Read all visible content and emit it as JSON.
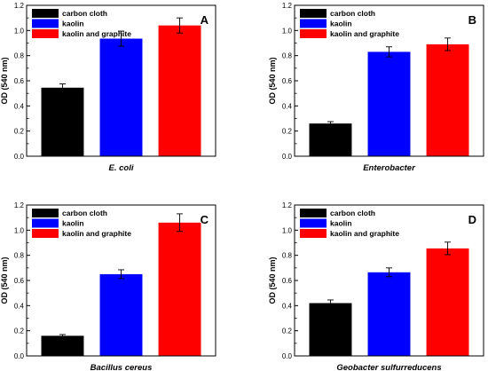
{
  "colors": {
    "carbon_cloth": "#000000",
    "kaolin": "#0000ff",
    "kaolin_graphite": "#ff0000",
    "frame": "#000000"
  },
  "chart_data": [
    {
      "type": "bar",
      "panel": "A",
      "categories": [
        "carbon cloth",
        "kaolin",
        "kaolin and graphite"
      ],
      "values": [
        0.545,
        0.935,
        1.04
      ],
      "errors": [
        0.03,
        0.06,
        0.06
      ],
      "xlabel": "E. coli",
      "ylabel": "OD (540 nm)",
      "ylim": [
        0,
        1.2
      ],
      "yticks": [
        "0.0",
        "0.2",
        "0.4",
        "0.6",
        "0.8",
        "1.0",
        "1.2"
      ],
      "legend": {
        "position": "top-left",
        "entries": [
          "carbon cloth",
          "kaolin",
          "kaolin and graphite"
        ]
      },
      "grid": false
    },
    {
      "type": "bar",
      "panel": "B",
      "categories": [
        "carbon cloth",
        "kaolin",
        "kaolin and graphite"
      ],
      "values": [
        0.26,
        0.83,
        0.89
      ],
      "errors": [
        0.015,
        0.04,
        0.05
      ],
      "xlabel": "Enterobacter",
      "ylabel": "OD (540 nm)",
      "ylim": [
        0,
        1.2
      ],
      "yticks": [
        "0.0",
        "0.2",
        "0.4",
        "0.6",
        "0.8",
        "1.0",
        "1.2"
      ],
      "legend": {
        "position": "top-left",
        "entries": [
          "carbon cloth",
          "kaolin",
          "kaolin and graphite"
        ]
      },
      "grid": false
    },
    {
      "type": "bar",
      "panel": "C",
      "categories": [
        "carbon cloth",
        "kaolin",
        "kaolin and graphite"
      ],
      "values": [
        0.16,
        0.65,
        1.06
      ],
      "errors": [
        0.01,
        0.035,
        0.07
      ],
      "xlabel": "Bacillus cereus",
      "ylabel": "OD (540 nm)",
      "ylim": [
        0,
        1.2
      ],
      "yticks": [
        "0.0",
        "0.2",
        "0.4",
        "0.6",
        "0.8",
        "1.0",
        "1.2"
      ],
      "legend": {
        "position": "top-left",
        "entries": [
          "carbon cloth",
          "kaolin",
          "kaolin and graphite"
        ]
      },
      "grid": false
    },
    {
      "type": "bar",
      "panel": "D",
      "categories": [
        "carbon cloth",
        "kaolin",
        "kaolin and graphite"
      ],
      "values": [
        0.42,
        0.665,
        0.855
      ],
      "errors": [
        0.025,
        0.035,
        0.05
      ],
      "xlabel": "Geobacter sulfurreducens",
      "ylabel": "OD (540 nm)",
      "ylim": [
        0,
        1.2
      ],
      "yticks": [
        "0.0",
        "0.2",
        "0.4",
        "0.6",
        "0.8",
        "1.0",
        "1.2"
      ],
      "legend": {
        "position": "top-left",
        "entries": [
          "carbon cloth",
          "kaolin",
          "kaolin and graphite"
        ]
      },
      "grid": false
    }
  ]
}
